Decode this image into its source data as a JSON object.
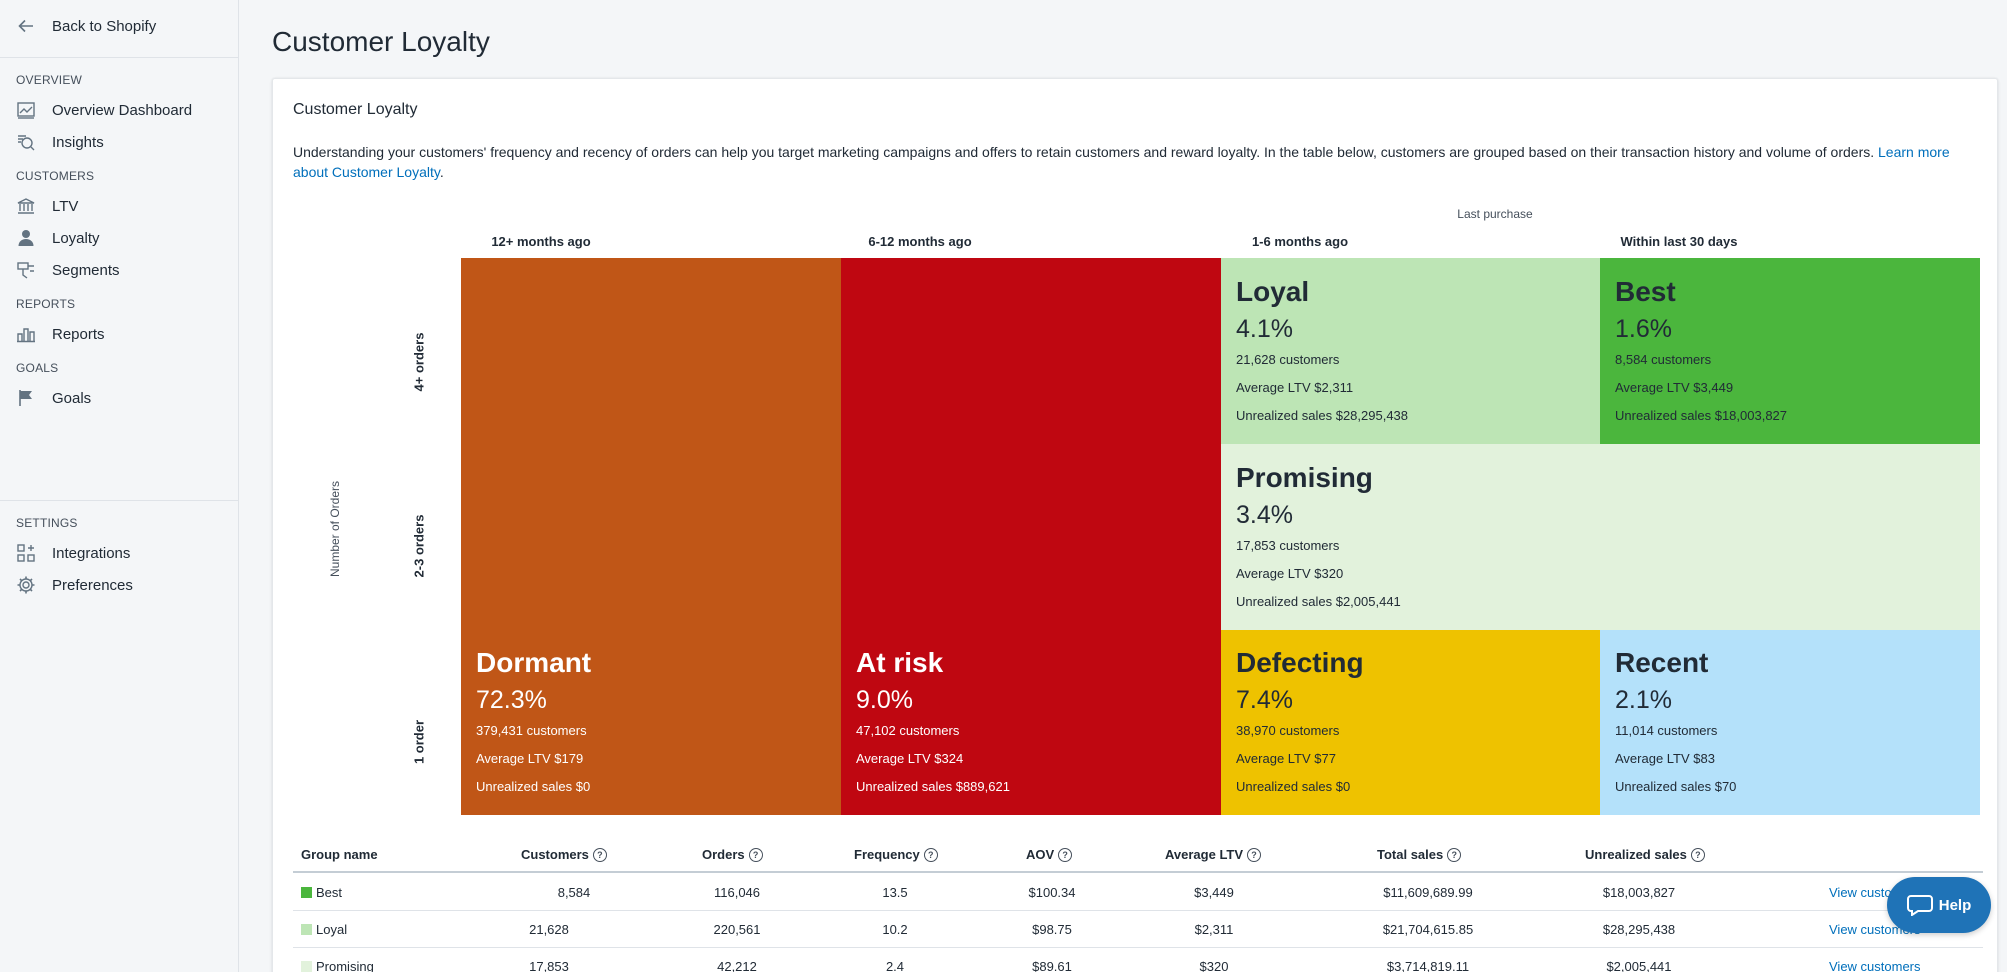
{
  "sidebar": {
    "back_label": "Back to Shopify",
    "sections": {
      "overview": "OVERVIEW",
      "customers": "CUSTOMERS",
      "reports": "REPORTS",
      "goals": "GOALS",
      "settings": "SETTINGS"
    },
    "items": {
      "overview_dashboard": "Overview Dashboard",
      "insights": "Insights",
      "ltv": "LTV",
      "loyalty": "Loyalty",
      "segments": "Segments",
      "reports": "Reports",
      "goals": "Goals",
      "integrations": "Integrations",
      "preferences": "Preferences"
    }
  },
  "page": {
    "title": "Customer Loyalty",
    "card_title": "Customer Loyalty",
    "description": "Understanding your customers' frequency and recency of orders can help you target marketing campaigns and offers to retain customers and reward loyalty. In the table below, customers are grouped based on their transaction history and volume of orders. ",
    "learn_more": "Learn more about Customer Loyalty",
    "description_end": "."
  },
  "matrix": {
    "x_title": "Last purchase",
    "y_title": "Number of Orders",
    "columns": [
      "12+ months ago",
      "6-12 months ago",
      "1-6 months ago",
      "Within last 30 days"
    ],
    "rows": [
      "4+ orders",
      "2-3 orders",
      "1 order"
    ],
    "segments": {
      "loyal": {
        "name": "Loyal",
        "pct": "4.1%",
        "customers": "21,628 customers",
        "ltv": "Average LTV $2,311",
        "unrealized": "Unrealized sales $28,295,438",
        "color": "#bde5b5"
      },
      "best": {
        "name": "Best",
        "pct": "1.6%",
        "customers": "8,584 customers",
        "ltv": "Average LTV $3,449",
        "unrealized": "Unrealized sales $18,003,827",
        "color": "#4bb63d"
      },
      "promising": {
        "name": "Promising",
        "pct": "3.4%",
        "customers": "17,853 customers",
        "ltv": "Average LTV $320",
        "unrealized": "Unrealized sales $2,005,441",
        "color": "#e2f2dc"
      },
      "dormant": {
        "name": "Dormant",
        "pct": "72.3%",
        "customers": "379,431 customers",
        "ltv": "Average LTV $179",
        "unrealized": "Unrealized sales $0",
        "color": "#c05617"
      },
      "at_risk": {
        "name": "At risk",
        "pct": "9.0%",
        "customers": "47,102 customers",
        "ltv": "Average LTV $324",
        "unrealized": "Unrealized sales $889,621",
        "color": "#bf0711"
      },
      "defecting": {
        "name": "Defecting",
        "pct": "7.4%",
        "customers": "38,970 customers",
        "ltv": "Average LTV $77",
        "unrealized": "Unrealized sales $0",
        "color": "#eec200"
      },
      "recent": {
        "name": "Recent",
        "pct": "2.1%",
        "customers": "11,014 customers",
        "ltv": "Average LTV $83",
        "unrealized": "Unrealized sales $70",
        "color": "#b4e1fa"
      }
    }
  },
  "table": {
    "headers": [
      "Group name",
      "Customers",
      "Orders",
      "Frequency",
      "AOV",
      "Average LTV",
      "Total sales",
      "Unrealized sales"
    ],
    "rows": [
      {
        "group": "Best",
        "color": "#4bb63d",
        "customers": "8,584",
        "orders": "116,046",
        "frequency": "13.5",
        "aov": "$100.34",
        "ltv": "$3,449",
        "total": "$11,609,689.99",
        "unrealized": "$18,003,827",
        "action": "View customers"
      },
      {
        "group": "Loyal",
        "color": "#bde5b5",
        "customers": "21,628",
        "orders": "220,561",
        "frequency": "10.2",
        "aov": "$98.75",
        "ltv": "$2,311",
        "total": "$21,704,615.85",
        "unrealized": "$28,295,438",
        "action": "View customers"
      },
      {
        "group": "Promising",
        "color": "#e2f2dc",
        "customers": "17,853",
        "orders": "42,212",
        "frequency": "2.4",
        "aov": "$89.61",
        "ltv": "$320",
        "total": "$3,714,819.11",
        "unrealized": "$2,005,441",
        "action": "View customers"
      }
    ]
  },
  "help_label": "Help"
}
